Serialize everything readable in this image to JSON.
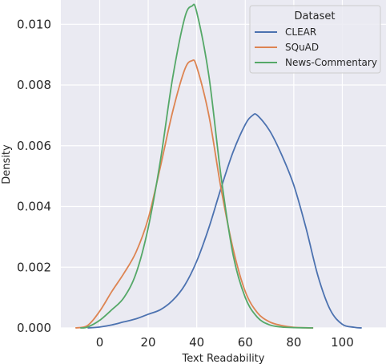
{
  "chart_data": {
    "type": "line",
    "title": "",
    "xlabel": "Text Readability",
    "ylabel": "Density",
    "xlim": [
      -16,
      118
    ],
    "ylim": [
      0,
      0.0108
    ],
    "xticks": [
      0,
      20,
      40,
      60,
      80,
      100
    ],
    "xtick_labels": [
      "0",
      "20",
      "40",
      "60",
      "80",
      "100"
    ],
    "yticks": [
      0,
      0.002,
      0.004,
      0.006,
      0.008,
      0.01
    ],
    "ytick_labels": [
      "0.000",
      "0.002",
      "0.004",
      "0.006",
      "0.008",
      "0.010"
    ],
    "grid": true,
    "legend_title": "Dataset",
    "legend_position": "top-right",
    "series": [
      {
        "name": "CLEAR",
        "color": "#4c72b0",
        "x": [
          -5,
          0,
          5,
          10,
          15,
          20,
          25,
          30,
          35,
          40,
          45,
          50,
          55,
          60,
          63,
          65,
          70,
          75,
          80,
          85,
          90,
          95,
          100,
          105,
          108
        ],
        "y": [
          0.0,
          3e-05,
          0.0001,
          0.0002,
          0.0003,
          0.00045,
          0.0006,
          0.0009,
          0.0014,
          0.0022,
          0.0033,
          0.0046,
          0.0058,
          0.0067,
          0.007,
          0.007,
          0.0065,
          0.0057,
          0.0047,
          0.0033,
          0.0017,
          0.0006,
          0.00012,
          2e-05,
          0.0
        ]
      },
      {
        "name": "SQuAD",
        "color": "#dd8452",
        "x": [
          -10,
          -5,
          0,
          5,
          10,
          15,
          20,
          25,
          30,
          35,
          38,
          40,
          45,
          50,
          55,
          60,
          65,
          70,
          75,
          80,
          85,
          88
        ],
        "y": [
          0.0,
          8e-05,
          0.00055,
          0.0012,
          0.0018,
          0.0025,
          0.0036,
          0.0053,
          0.0071,
          0.0085,
          0.0088,
          0.0086,
          0.007,
          0.0046,
          0.0026,
          0.0012,
          0.0005,
          0.0002,
          8e-05,
          2e-05,
          5e-06,
          0.0
        ]
      },
      {
        "name": "News-Commentary",
        "color": "#55a868",
        "x": [
          -8,
          -5,
          0,
          5,
          10,
          15,
          20,
          25,
          30,
          35,
          38,
          40,
          45,
          50,
          55,
          60,
          65,
          70,
          75,
          80,
          85,
          88
        ],
        "y": [
          0.0,
          3e-05,
          0.00025,
          0.0006,
          0.001,
          0.0018,
          0.0033,
          0.0055,
          0.0082,
          0.0102,
          0.0106,
          0.0104,
          0.0083,
          0.005,
          0.0024,
          0.001,
          0.00035,
          0.0001,
          3e-05,
          1e-05,
          3e-06,
          0.0
        ]
      }
    ]
  }
}
